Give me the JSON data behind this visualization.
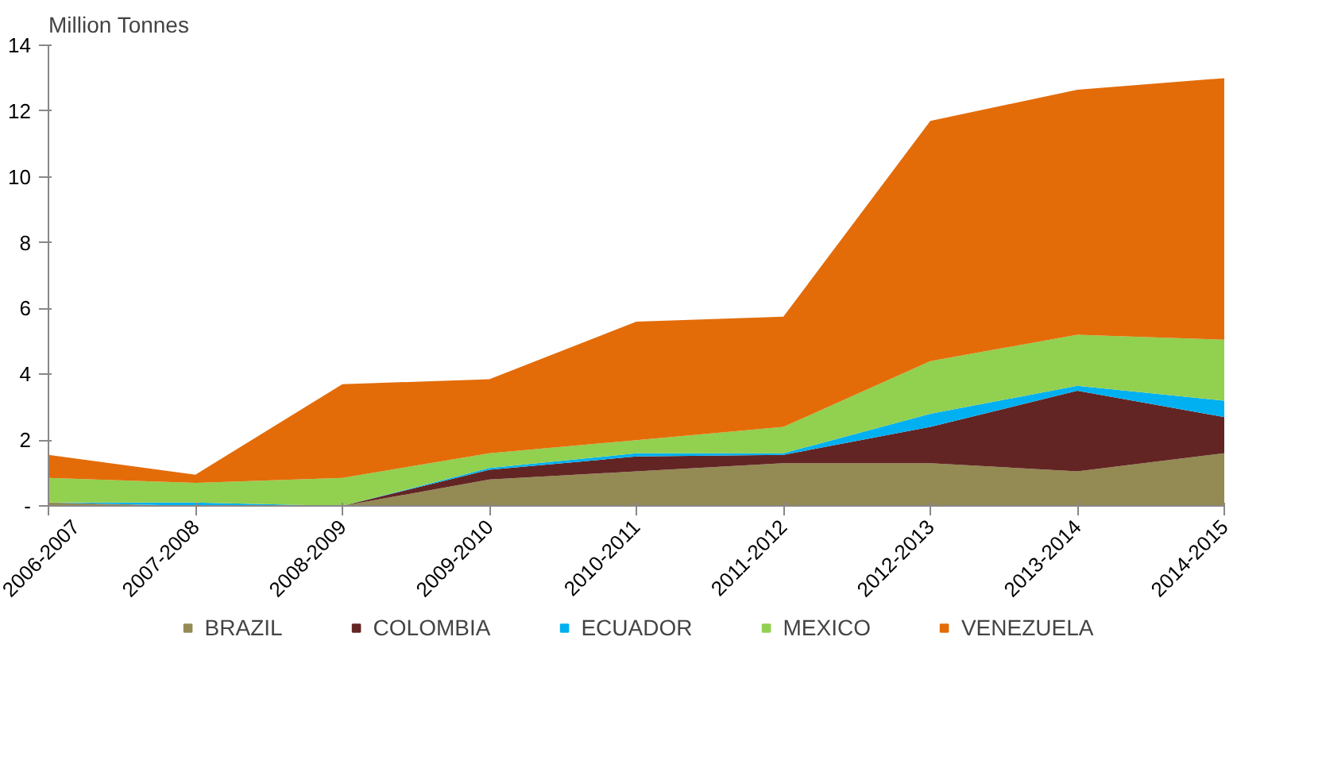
{
  "chart_data": {
    "type": "area",
    "stacked": true,
    "ylabel": "Million Tonnes",
    "categories": [
      "2006-2007",
      "2007-2008",
      "2008-2009",
      "2009-2010",
      "2010-2011",
      "2011-2012",
      "2012-2013",
      "2013-2014",
      "2014-2015"
    ],
    "series": [
      {
        "name": "BRAZIL",
        "color": "#948a54",
        "values": [
          0.1,
          0,
          0,
          0.8,
          1.05,
          1.3,
          1.3,
          1.05,
          1.6
        ]
      },
      {
        "name": "COLOMBIA",
        "color": "#632523",
        "values": [
          0,
          0,
          0,
          0.3,
          0.45,
          0.25,
          1.1,
          2.45,
          1.1
        ]
      },
      {
        "name": "ECUADOR",
        "color": "#00b0f0",
        "values": [
          0,
          0.1,
          0,
          0.05,
          0.1,
          0.05,
          0.4,
          0.15,
          0.5
        ]
      },
      {
        "name": "MEXICO",
        "color": "#92d050",
        "values": [
          0.75,
          0.6,
          0.85,
          0.45,
          0.4,
          0.8,
          1.6,
          1.55,
          1.85
        ]
      },
      {
        "name": "VENEZUELA",
        "color": "#e36c09",
        "values": [
          0.7,
          0.25,
          2.85,
          2.25,
          3.6,
          3.35,
          7.3,
          7.45,
          7.95
        ]
      }
    ],
    "ylim": [
      0,
      14
    ],
    "yticks": [
      {
        "value": 0,
        "label": "-"
      },
      2,
      4,
      6,
      8,
      10,
      12,
      14
    ],
    "grid": false,
    "legend": "bottom"
  }
}
